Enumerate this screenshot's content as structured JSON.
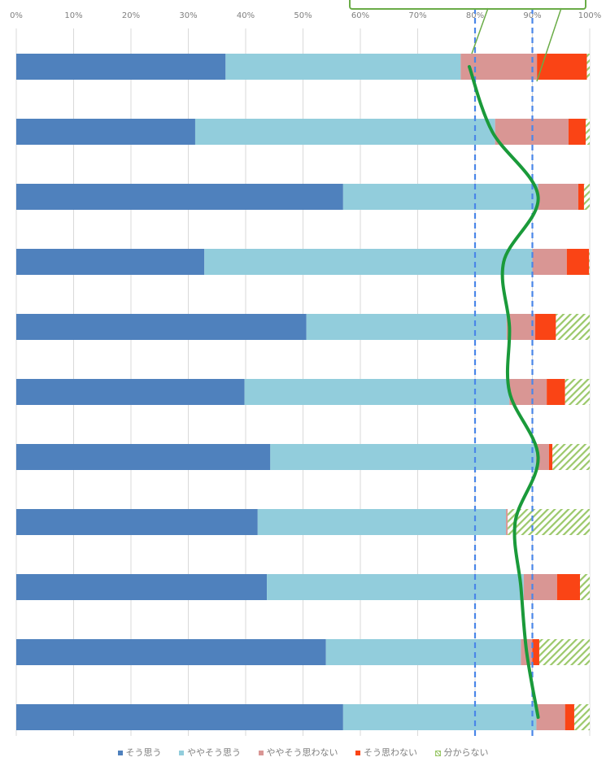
{
  "chart_data": {
    "type": "bar",
    "orientation": "horizontal",
    "stacked": true,
    "title": "",
    "xlabel": "",
    "ylabel": "",
    "xlim": [
      0,
      100
    ],
    "x_tick_labels": [
      "0%",
      "10%",
      "20%",
      "30%",
      "40%",
      "50%",
      "60%",
      "70%",
      "80%",
      "90%",
      "100%"
    ],
    "grid": true,
    "legend_position": "bottom",
    "reference_lines": [
      80,
      90
    ],
    "series": [
      {
        "name": "そう思う",
        "color": "#4f81bd",
        "pattern": "solid",
        "values": [
          36.5,
          31.2,
          57.0,
          32.8,
          50.6,
          39.8,
          44.3,
          42.1,
          43.7,
          54.0,
          57.0
        ]
      },
      {
        "name": "ややそう思う",
        "color": "#92cddc",
        "pattern": "solid",
        "values": [
          41.0,
          52.3,
          34.0,
          57.2,
          34.9,
          46.2,
          46.3,
          43.3,
          44.8,
          34.0,
          33.7
        ]
      },
      {
        "name": "ややそう思わない",
        "color": "#d99694",
        "pattern": "solid",
        "values": [
          13.3,
          12.8,
          7.0,
          6.0,
          5.0,
          6.5,
          2.3,
          0.3,
          5.8,
          2.0,
          5.0
        ]
      },
      {
        "name": "そう思わない",
        "color": "#fa4415",
        "pattern": "solid",
        "values": [
          8.7,
          3.0,
          1.0,
          3.9,
          3.6,
          3.2,
          0.6,
          0.0,
          4.0,
          1.2,
          1.6
        ]
      },
      {
        "name": "分からない",
        "color": "#9bc86a",
        "pattern": "hatch",
        "values": [
          0.5,
          0.7,
          1.0,
          0.1,
          5.9,
          4.3,
          6.5,
          14.3,
          1.7,
          8.8,
          2.7
        ]
      }
    ],
    "trend_line": {
      "color": "#1a9a3a",
      "values": [
        79,
        83,
        91,
        85,
        86,
        86,
        91,
        87,
        88,
        89,
        91
      ]
    }
  }
}
